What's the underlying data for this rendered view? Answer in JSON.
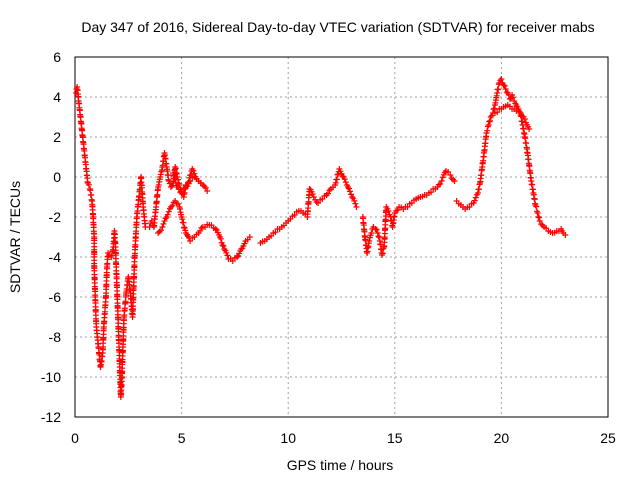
{
  "chart_data": {
    "type": "scatter",
    "title": "Day 347 of 2016, Sidereal Day-to-day VTEC variation (SDTVAR) for receiver mabs",
    "xlabel": "GPS time / hours",
    "ylabel": "SDTVAR / TECUs",
    "xlim": [
      0,
      25
    ],
    "ylim": [
      -12,
      6
    ],
    "xticks": [
      0,
      5,
      10,
      15,
      20,
      25
    ],
    "yticks": [
      -12,
      -10,
      -8,
      -6,
      -4,
      -2,
      0,
      2,
      4,
      6
    ],
    "grid": true,
    "marker": "+",
    "series": [
      {
        "name": "SDTVAR",
        "color": "#ff0000",
        "trace": [
          [
            0.05,
            4.2
          ],
          [
            0.1,
            4.5
          ],
          [
            0.6,
            -0.3
          ],
          [
            0.7,
            -0.6
          ],
          [
            0.8,
            -1.2
          ],
          [
            0.85,
            -2.0
          ],
          [
            0.9,
            -3.0
          ],
          [
            0.9,
            -4.5
          ],
          [
            0.95,
            -6.0
          ],
          [
            1.0,
            -7.5
          ],
          [
            1.1,
            -8.5
          ],
          [
            1.2,
            -9.5
          ],
          [
            1.3,
            -8.8
          ],
          [
            1.35,
            -7.5
          ],
          [
            1.45,
            -6.0
          ],
          [
            1.5,
            -4.5
          ],
          [
            1.55,
            -3.8
          ],
          [
            1.6,
            -3.9
          ],
          [
            1.7,
            -4.0
          ],
          [
            1.8,
            -3.5
          ],
          [
            1.85,
            -2.7
          ],
          [
            1.9,
            -3.5
          ],
          [
            1.95,
            -5.0
          ],
          [
            2.0,
            -6.5
          ],
          [
            2.05,
            -8.0
          ],
          [
            2.1,
            -9.5
          ],
          [
            2.15,
            -11.0
          ],
          [
            2.2,
            -10.0
          ],
          [
            2.25,
            -8.5
          ],
          [
            2.3,
            -7.0
          ],
          [
            2.4,
            -5.8
          ],
          [
            2.5,
            -5.0
          ],
          [
            2.6,
            -5.8
          ],
          [
            2.7,
            -7.0
          ],
          [
            2.75,
            -5.5
          ],
          [
            2.8,
            -4.0
          ],
          [
            2.85,
            -3.0
          ],
          [
            2.9,
            -2.0
          ],
          [
            3.0,
            -1.0
          ],
          [
            3.1,
            0.0
          ],
          [
            3.2,
            -1.5
          ],
          [
            3.3,
            -2.5
          ],
          [
            3.5,
            -2.5
          ],
          [
            3.6,
            -2.2
          ],
          [
            3.7,
            -2.5
          ],
          [
            3.8,
            -1.5
          ],
          [
            3.9,
            -0.5
          ],
          [
            4.0,
            0.0
          ],
          [
            4.1,
            0.5
          ],
          [
            4.2,
            1.2
          ],
          [
            4.3,
            0.5
          ],
          [
            4.4,
            -0.2
          ],
          [
            4.5,
            -0.5
          ],
          [
            4.6,
            -0.3
          ],
          [
            4.7,
            0.5
          ],
          [
            4.8,
            0.0
          ],
          [
            4.9,
            -0.4
          ],
          [
            5.0,
            -0.7
          ],
          [
            5.2,
            -0.5
          ],
          [
            5.4,
            -0.2
          ],
          [
            5.6,
            0.0
          ],
          [
            5.8,
            -0.2
          ],
          [
            6.0,
            -0.4
          ],
          [
            6.2,
            -0.7
          ]
        ],
        "trace2": [
          [
            3.9,
            -2.8
          ],
          [
            4.1,
            -2.5
          ],
          [
            4.3,
            -2.0
          ],
          [
            4.5,
            -1.5
          ],
          [
            4.7,
            -1.2
          ],
          [
            4.9,
            -1.5
          ],
          [
            5.0,
            -2.0
          ],
          [
            5.2,
            -2.8
          ],
          [
            5.4,
            -3.2
          ],
          [
            5.6,
            -3.0
          ],
          [
            5.8,
            -2.8
          ],
          [
            6.0,
            -2.5
          ],
          [
            6.3,
            -2.4
          ],
          [
            6.6,
            -2.6
          ],
          [
            6.8,
            -3.0
          ],
          [
            7.0,
            -3.6
          ],
          [
            7.2,
            -4.1
          ],
          [
            7.4,
            -4.2
          ],
          [
            7.6,
            -4.0
          ],
          [
            7.8,
            -3.6
          ],
          [
            8.0,
            -3.2
          ],
          [
            8.2,
            -3.0
          ]
        ],
        "trace3": [
          [
            8.7,
            -3.3
          ],
          [
            8.9,
            -3.2
          ],
          [
            9.1,
            -3.0
          ],
          [
            9.3,
            -2.8
          ],
          [
            9.5,
            -2.6
          ],
          [
            9.7,
            -2.5
          ],
          [
            9.9,
            -2.3
          ],
          [
            10.1,
            -2.1
          ],
          [
            10.3,
            -1.9
          ],
          [
            10.5,
            -1.7
          ],
          [
            10.7,
            -1.8
          ],
          [
            10.9,
            -2.0
          ],
          [
            11.0,
            -0.6
          ],
          [
            11.2,
            -1.0
          ],
          [
            11.4,
            -1.3
          ],
          [
            11.6,
            -1.1
          ],
          [
            11.8,
            -0.9
          ],
          [
            12.0,
            -0.6
          ],
          [
            12.2,
            -0.4
          ],
          [
            12.4,
            0.4
          ],
          [
            12.6,
            0.0
          ],
          [
            12.8,
            -0.5
          ],
          [
            13.0,
            -1.0
          ],
          [
            13.2,
            -1.5
          ]
        ],
        "trace4": [
          [
            13.5,
            -2.0
          ],
          [
            13.6,
            -3.0
          ],
          [
            13.7,
            -3.8
          ],
          [
            13.8,
            -3.2
          ],
          [
            13.9,
            -2.8
          ],
          [
            14.0,
            -2.5
          ],
          [
            14.1,
            -2.6
          ],
          [
            14.2,
            -2.8
          ],
          [
            14.3,
            -3.2
          ],
          [
            14.4,
            -3.9
          ],
          [
            14.5,
            -3.5
          ],
          [
            14.6,
            -1.5
          ],
          [
            14.7,
            -1.7
          ],
          [
            14.8,
            -2.0
          ],
          [
            14.9,
            -2.5
          ],
          [
            15.0,
            -1.8
          ],
          [
            15.2,
            -1.5
          ],
          [
            15.4,
            -1.6
          ],
          [
            15.6,
            -1.5
          ],
          [
            15.8,
            -1.3
          ],
          [
            16.0,
            -1.1
          ],
          [
            16.2,
            -1.0
          ],
          [
            16.4,
            -0.9
          ],
          [
            16.6,
            -0.8
          ],
          [
            16.8,
            -0.6
          ],
          [
            17.0,
            -0.5
          ],
          [
            17.2,
            -0.2
          ],
          [
            17.4,
            0.3
          ],
          [
            17.6,
            0.1
          ],
          [
            17.8,
            -0.2
          ]
        ],
        "trace5": [
          [
            17.9,
            -1.2
          ],
          [
            18.1,
            -1.4
          ],
          [
            18.3,
            -1.6
          ],
          [
            18.5,
            -1.5
          ],
          [
            18.7,
            -1.3
          ],
          [
            18.9,
            -0.8
          ],
          [
            19.0,
            -0.3
          ],
          [
            19.1,
            0.5
          ],
          [
            19.2,
            1.3
          ],
          [
            19.3,
            2.2
          ],
          [
            19.4,
            2.6
          ],
          [
            19.5,
            3.0
          ],
          [
            19.6,
            3.2
          ],
          [
            19.7,
            3.6
          ],
          [
            19.8,
            4.2
          ],
          [
            19.9,
            4.7
          ],
          [
            20.0,
            4.9
          ],
          [
            20.1,
            4.6
          ],
          [
            20.2,
            4.4
          ],
          [
            20.3,
            4.2
          ],
          [
            20.4,
            3.9
          ],
          [
            20.5,
            4.1
          ],
          [
            20.6,
            3.8
          ],
          [
            20.7,
            3.6
          ],
          [
            20.8,
            3.4
          ],
          [
            20.9,
            3.1
          ],
          [
            21.0,
            2.6
          ],
          [
            21.1,
            2.0
          ],
          [
            21.2,
            1.4
          ],
          [
            21.3,
            0.6
          ],
          [
            21.4,
            -0.2
          ],
          [
            21.5,
            -0.8
          ],
          [
            21.6,
            -1.4
          ],
          [
            21.7,
            -1.8
          ],
          [
            21.8,
            -2.2
          ],
          [
            22.0,
            -2.5
          ],
          [
            22.2,
            -2.7
          ],
          [
            22.4,
            -2.8
          ],
          [
            22.6,
            -2.7
          ],
          [
            22.8,
            -2.6
          ],
          [
            22.9,
            -2.8
          ],
          [
            23.0,
            -2.9
          ]
        ],
        "trace6": [
          [
            19.7,
            3.2
          ],
          [
            19.9,
            3.4
          ],
          [
            20.1,
            3.5
          ],
          [
            20.3,
            3.6
          ],
          [
            20.5,
            3.4
          ],
          [
            20.7,
            3.3
          ],
          [
            20.9,
            3.2
          ],
          [
            21.1,
            2.9
          ],
          [
            21.3,
            2.4
          ]
        ],
        "trace7": [
          [
            4.6,
            0.2
          ],
          [
            4.8,
            -0.5
          ],
          [
            5.0,
            -0.8
          ],
          [
            5.1,
            -1.0
          ],
          [
            5.2,
            -0.4
          ],
          [
            5.3,
            -0.3
          ],
          [
            5.5,
            0.4
          ],
          [
            5.7,
            -0.1
          ],
          [
            5.9,
            -0.3
          ]
        ]
      }
    ]
  }
}
